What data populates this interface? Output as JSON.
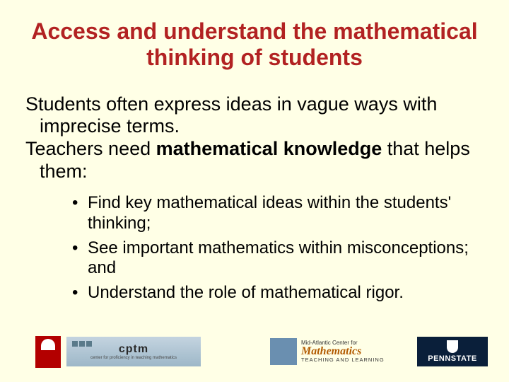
{
  "title": "Access and understand the mathematical thinking of students",
  "para1": "Students often express ideas in vague ways with imprecise terms.",
  "para2_pre": "Teachers need ",
  "para2_bold": "mathematical knowledge",
  "para2_post": " that helps them:",
  "bullets": [
    "Find key mathematical ideas within the students' thinking;",
    "See important mathematics within misconceptions; and",
    "Understand the role of mathematical rigor."
  ],
  "logos": {
    "cptm_main": "cptm",
    "cptm_sub": "center for proficiency in teaching mathematics",
    "math_l1": "Mid-Atlantic Center for",
    "math_l2": "Mathematics",
    "math_l3": "TEACHING AND LEARNING",
    "penn": "PENNSTATE"
  },
  "colors": {
    "background": "#ffffe6",
    "title": "#b22222",
    "text": "#000000"
  }
}
